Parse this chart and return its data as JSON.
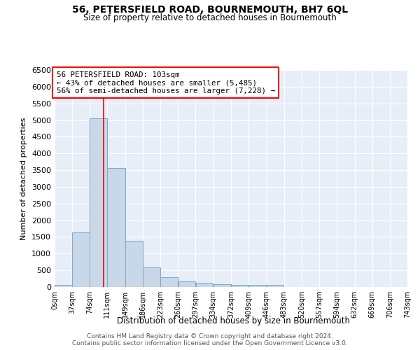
{
  "title": "56, PETERSFIELD ROAD, BOURNEMOUTH, BH7 6QL",
  "subtitle": "Size of property relative to detached houses in Bournemouth",
  "xlabel": "Distribution of detached houses by size in Bournemouth",
  "ylabel": "Number of detached properties",
  "bar_color": "#c8d8e8",
  "bar_edge_color": "#7aaacc",
  "background_color": "#e8eef8",
  "grid_color": "#ffffff",
  "red_line_x": 103,
  "annotation_text_line1": "56 PETERSFIELD ROAD: 103sqm",
  "annotation_text_line2": "← 43% of detached houses are smaller (5,485)",
  "annotation_text_line3": "56% of semi-detached houses are larger (7,228) →",
  "ylim": [
    0,
    6500
  ],
  "yticks": [
    0,
    500,
    1000,
    1500,
    2000,
    2500,
    3000,
    3500,
    4000,
    4500,
    5000,
    5500,
    6000,
    6500
  ],
  "bin_edges": [
    0,
    37,
    74,
    111,
    149,
    186,
    223,
    260,
    297,
    334,
    372,
    409,
    446,
    483,
    520,
    557,
    594,
    632,
    669,
    706,
    743
  ],
  "bin_labels": [
    "0sqm",
    "37sqm",
    "74sqm",
    "111sqm",
    "149sqm",
    "186sqm",
    "223sqm",
    "260sqm",
    "297sqm",
    "334sqm",
    "372sqm",
    "409sqm",
    "446sqm",
    "483sqm",
    "520sqm",
    "557sqm",
    "594sqm",
    "632sqm",
    "669sqm",
    "706sqm",
    "743sqm"
  ],
  "bar_heights": [
    70,
    1640,
    5060,
    3570,
    1390,
    590,
    300,
    160,
    130,
    90,
    55,
    55,
    60,
    0,
    0,
    0,
    0,
    0,
    0,
    0
  ],
  "footer_line1": "Contains HM Land Registry data © Crown copyright and database right 2024.",
  "footer_line2": "Contains public sector information licensed under the Open Government Licence v3.0."
}
